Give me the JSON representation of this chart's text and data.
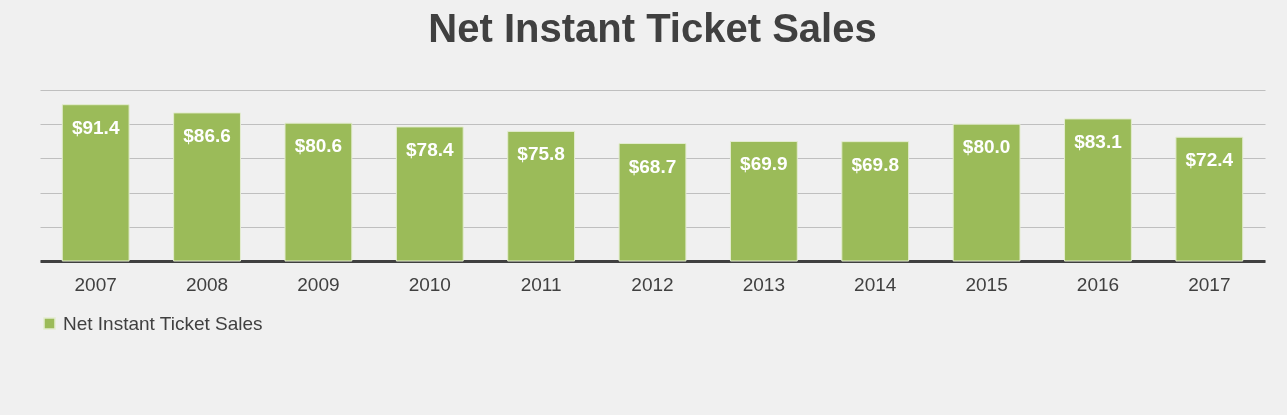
{
  "chart_data": {
    "type": "bar",
    "title": "Net Instant Ticket Sales",
    "categories": [
      "2007",
      "2008",
      "2009",
      "2010",
      "2011",
      "2012",
      "2013",
      "2014",
      "2015",
      "2016",
      "2017"
    ],
    "series": [
      {
        "name": "Net Instant Ticket Sales",
        "color": "#9bbb59",
        "values": [
          91.4,
          86.6,
          80.6,
          78.4,
          75.8,
          68.7,
          69.9,
          69.8,
          80.0,
          83.1,
          72.4
        ],
        "value_labels": [
          "$91.4",
          "$86.6",
          "$80.6",
          "$78.4",
          "$75.8",
          "$68.7",
          "$69.9",
          "$69.8",
          "$80.0",
          "$83.1",
          "$72.4"
        ]
      }
    ],
    "ylim": [
      0,
      100
    ],
    "yticks": [
      {
        "value": 0,
        "label": null
      },
      {
        "value": 20,
        "label": null
      },
      {
        "value": 40,
        "label": null
      },
      {
        "value": 60,
        "label": null
      },
      {
        "value": 80,
        "label": null
      },
      {
        "value": 100,
        "label": null
      }
    ],
    "grid": "y",
    "tick_labels": "x",
    "legend": "bottom"
  }
}
